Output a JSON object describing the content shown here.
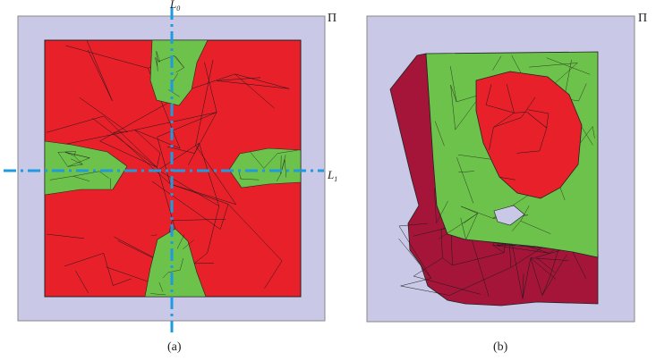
{
  "figure": {
    "panel_a": {
      "caption": "(a)",
      "plane_label": "Π",
      "line_vertical_label": "L",
      "line_vertical_sub": "0",
      "line_horizontal_label": "L",
      "line_horizontal_sub": "1"
    },
    "panel_b": {
      "caption": "(b)",
      "plane_label": "Π"
    }
  },
  "colors": {
    "plane_fill": "#c9c8e6",
    "red_mesh": "#e8202a",
    "dark_red_mesh": "#a5153a",
    "green_mesh": "#6cc24a",
    "mesh_edges": "#1a1a1a",
    "axis_lines": "#1e9be0"
  }
}
